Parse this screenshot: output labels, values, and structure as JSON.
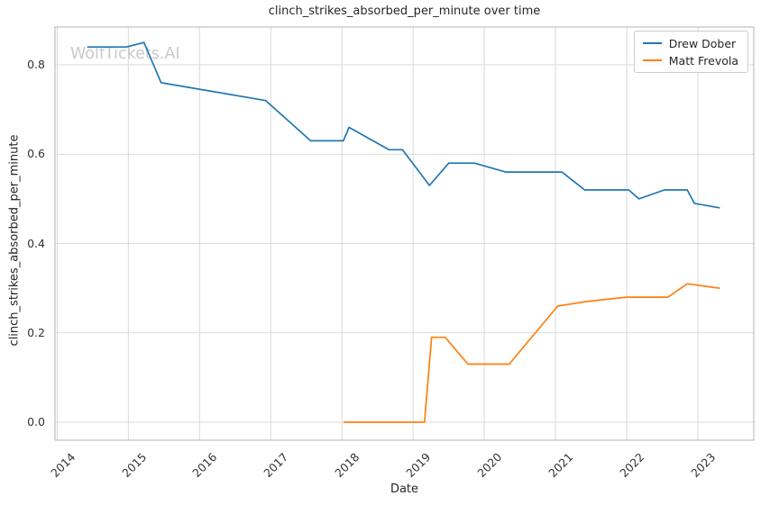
{
  "watermark": "WolfTickets.AI",
  "watermark_color": "#c9c9c9",
  "colors": {
    "grid": "#d9d9d9",
    "spine": "#b3b3b3",
    "text": "#262626",
    "tick_text": "#333333"
  },
  "chart_data": {
    "type": "line",
    "title": "clinch_strikes_absorbed_per_minute over time",
    "xlabel": "Date",
    "ylabel": "clinch_strikes_absorbed_per_minute",
    "grid": true,
    "legend_position": "upper right",
    "xlim": [
      2013.97,
      2023.785
    ],
    "ylim": [
      -0.0403,
      0.8847
    ],
    "x_tick_values": [
      2014,
      2015,
      2016,
      2017,
      2018,
      2019,
      2020,
      2021,
      2022,
      2023
    ],
    "x_tick_labels": [
      "2014",
      "2015",
      "2016",
      "2017",
      "2018",
      "2019",
      "2020",
      "2021",
      "2022",
      "2023"
    ],
    "y_tick_values": [
      0.0,
      0.2,
      0.4,
      0.6,
      0.8
    ],
    "y_tick_labels": [
      "0.0",
      "0.2",
      "0.4",
      "0.6",
      "0.8"
    ],
    "series": [
      {
        "name": "Drew Dober",
        "color": "#1f77b4",
        "points": [
          [
            2014.43,
            0.84
          ],
          [
            2014.97,
            0.84
          ],
          [
            2015.22,
            0.85
          ],
          [
            2015.46,
            0.76
          ],
          [
            2016.93,
            0.72
          ],
          [
            2017.56,
            0.63
          ],
          [
            2018.02,
            0.63
          ],
          [
            2018.1,
            0.66
          ],
          [
            2018.66,
            0.61
          ],
          [
            2018.85,
            0.61
          ],
          [
            2019.23,
            0.53
          ],
          [
            2019.5,
            0.58
          ],
          [
            2019.86,
            0.58
          ],
          [
            2020.3,
            0.56
          ],
          [
            2021.09,
            0.56
          ],
          [
            2021.41,
            0.52
          ],
          [
            2022.03,
            0.52
          ],
          [
            2022.17,
            0.5
          ],
          [
            2022.53,
            0.52
          ],
          [
            2022.85,
            0.52
          ],
          [
            2022.95,
            0.49
          ],
          [
            2023.3,
            0.48
          ]
        ]
      },
      {
        "name": "Matt Frevola",
        "color": "#ff7f0e",
        "points": [
          [
            2018.03,
            0.0
          ],
          [
            2019.16,
            0.0
          ],
          [
            2019.26,
            0.19
          ],
          [
            2019.45,
            0.19
          ],
          [
            2019.77,
            0.13
          ],
          [
            2020.35,
            0.13
          ],
          [
            2021.03,
            0.26
          ],
          [
            2021.43,
            0.27
          ],
          [
            2022.0,
            0.28
          ],
          [
            2022.58,
            0.28
          ],
          [
            2022.85,
            0.31
          ],
          [
            2023.3,
            0.3
          ]
        ]
      }
    ]
  }
}
